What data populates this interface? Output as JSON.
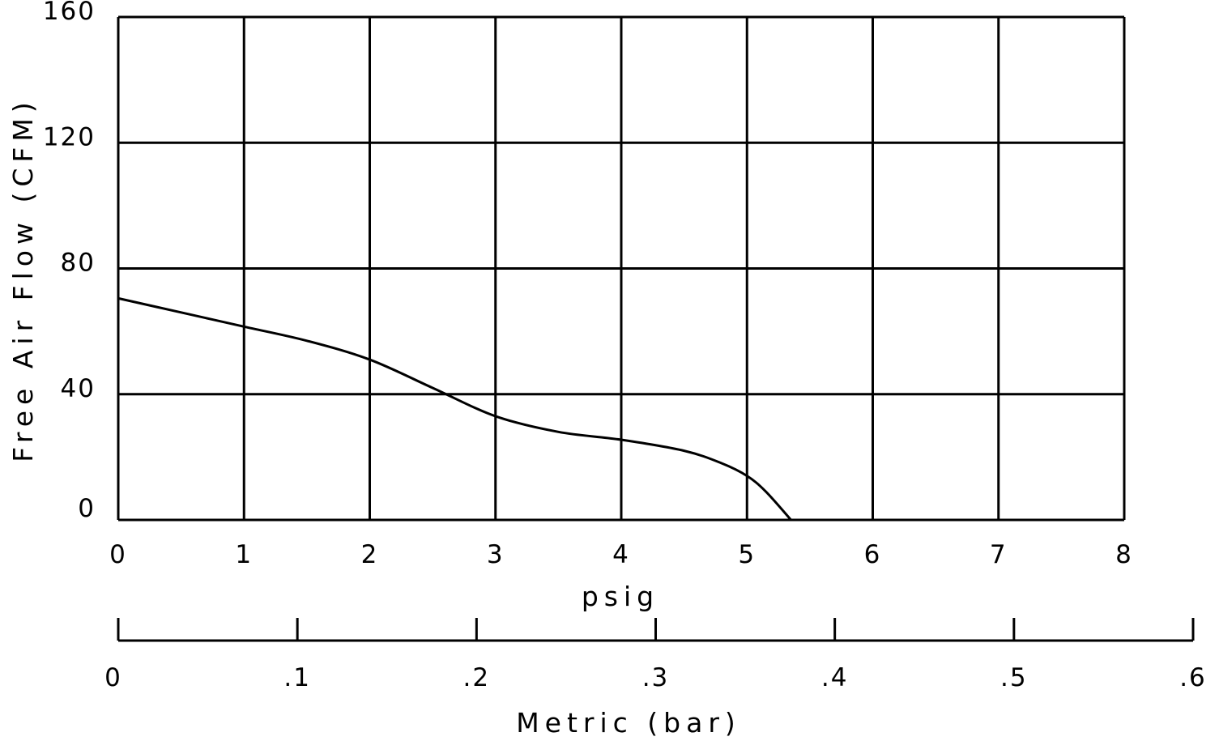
{
  "chart_data": {
    "type": "line",
    "title": "",
    "xlabel": "psig",
    "ylabel": "Free Air Flow (CFM)",
    "x2label": "Metric (bar)",
    "xlim": [
      0,
      8
    ],
    "ylim": [
      0,
      160
    ],
    "x2lim": [
      0,
      0.6
    ],
    "grid": true,
    "x_ticks": [
      "0",
      "1",
      "2",
      "3",
      "4",
      "5",
      "6",
      "7",
      "8"
    ],
    "y_ticks": [
      "0",
      "40",
      "80",
      "120",
      "160"
    ],
    "x2_ticks": [
      "0",
      ".1",
      ".2",
      ".3",
      ".4",
      ".5",
      ".6"
    ],
    "series": [
      {
        "x": [
          0,
          0.5,
          1.0,
          1.5,
          2.0,
          2.5,
          3.0,
          3.5,
          4.0,
          4.5,
          4.8,
          5.0,
          5.15,
          5.35
        ],
        "y": [
          70.5,
          66,
          61.5,
          57,
          51,
          42,
          33,
          28,
          25.5,
          22,
          18,
          14,
          9,
          0
        ],
        "color": "#000000"
      }
    ]
  }
}
